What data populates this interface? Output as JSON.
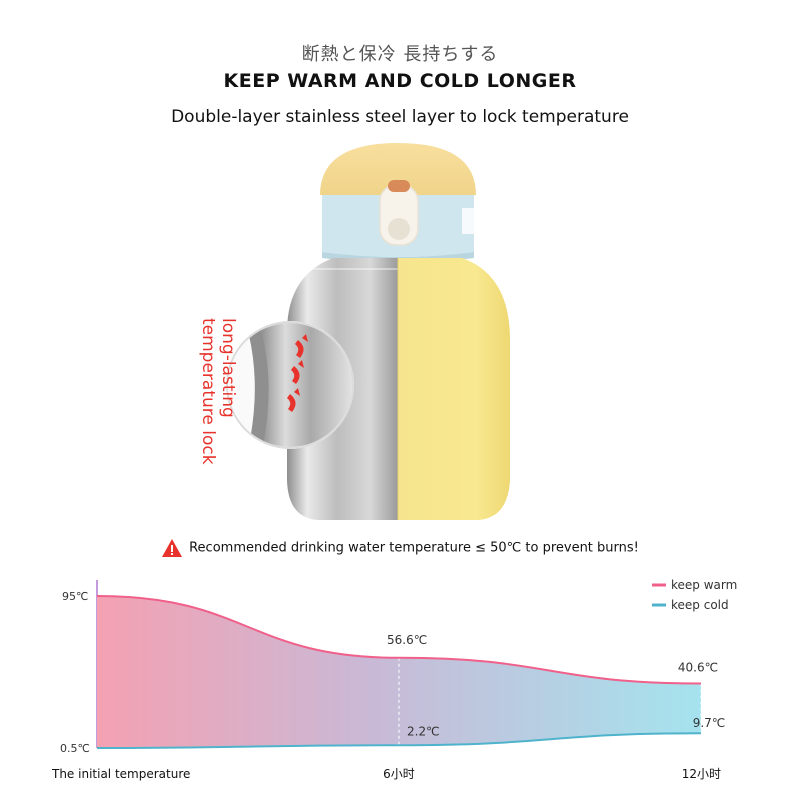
{
  "header": {
    "jp_title": "断熱と保冷 長持ちする",
    "en_title": "KEEP WARM AND COLD LONGER",
    "subtitle": "Double-layer stainless steel layer to lock temperature"
  },
  "product": {
    "callout_line1": "long-lasting",
    "callout_line2": "temperature lock",
    "colors": {
      "lid": "#f5dc96",
      "band": "#cfe6ef",
      "body": "#f7e58a",
      "steel": "#c9c9c9",
      "accent": "#e8332c"
    }
  },
  "warning": {
    "icon": "warning-triangle-icon",
    "text": "Recommended drinking water temperature ≤ 50℃ to prevent burns!"
  },
  "chart_data": {
    "type": "area",
    "x_labels": [
      "The initial temperature",
      "6小时",
      "12小时"
    ],
    "x": [
      0,
      6,
      12
    ],
    "ylim": [
      0.5,
      95
    ],
    "y_tick_labels": [
      "95℃",
      "0.5℃"
    ],
    "legend_position": "top-right",
    "series": [
      {
        "name": "keep warm",
        "color": "#f0608a",
        "values": [
          95,
          56.6,
          40.6
        ],
        "value_labels": [
          "",
          "56.6℃",
          "40.6℃"
        ]
      },
      {
        "name": "keep cold",
        "color": "#4fb3cc",
        "values": [
          0.5,
          2.2,
          9.7
        ],
        "value_labels": [
          "",
          "2.2℃",
          "9.7℃"
        ]
      }
    ]
  }
}
